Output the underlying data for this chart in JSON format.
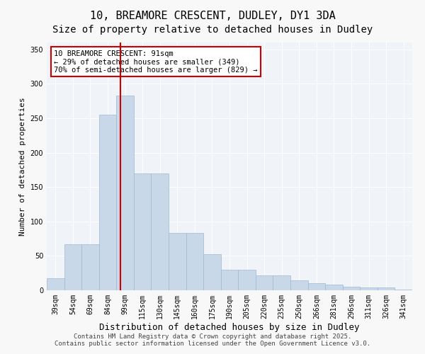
{
  "title1": "10, BREAMORE CRESCENT, DUDLEY, DY1 3DA",
  "title2": "Size of property relative to detached houses in Dudley",
  "xlabel": "Distribution of detached houses by size in Dudley",
  "ylabel": "Number of detached properties",
  "bar_color": "#c8d8e8",
  "bar_edge_color": "#a0b8d0",
  "categories": [
    "39sqm",
    "54sqm",
    "69sqm",
    "84sqm",
    "99sqm",
    "115sqm",
    "130sqm",
    "145sqm",
    "160sqm",
    "175sqm",
    "190sqm",
    "205sqm",
    "220sqm",
    "235sqm",
    "250sqm",
    "266sqm",
    "281sqm",
    "296sqm",
    "311sqm",
    "326sqm",
    "341sqm"
  ],
  "values": [
    18,
    67,
    67,
    255,
    283,
    170,
    170,
    83,
    83,
    52,
    30,
    30,
    22,
    22,
    14,
    10,
    8,
    5,
    4,
    4,
    1
  ],
  "ylim": [
    0,
    360
  ],
  "yticks": [
    0,
    50,
    100,
    150,
    200,
    250,
    300,
    350
  ],
  "red_line_x": 3.75,
  "annotation_title": "10 BREAMORE CRESCENT: 91sqm",
  "annotation_line1": "← 29% of detached houses are smaller (349)",
  "annotation_line2": "70% of semi-detached houses are larger (829) →",
  "annotation_box_color": "#ffffff",
  "annotation_box_edge": "#cc0000",
  "red_line_color": "#cc0000",
  "footer1": "Contains HM Land Registry data © Crown copyright and database right 2025.",
  "footer2": "Contains public sector information licensed under the Open Government Licence v3.0.",
  "background_color": "#f0f4f8",
  "grid_color": "#ffffff",
  "title_fontsize": 11,
  "subtitle_fontsize": 10,
  "tick_fontsize": 7,
  "xlabel_fontsize": 9,
  "ylabel_fontsize": 8,
  "annotation_fontsize": 7.5,
  "footer_fontsize": 6.5
}
